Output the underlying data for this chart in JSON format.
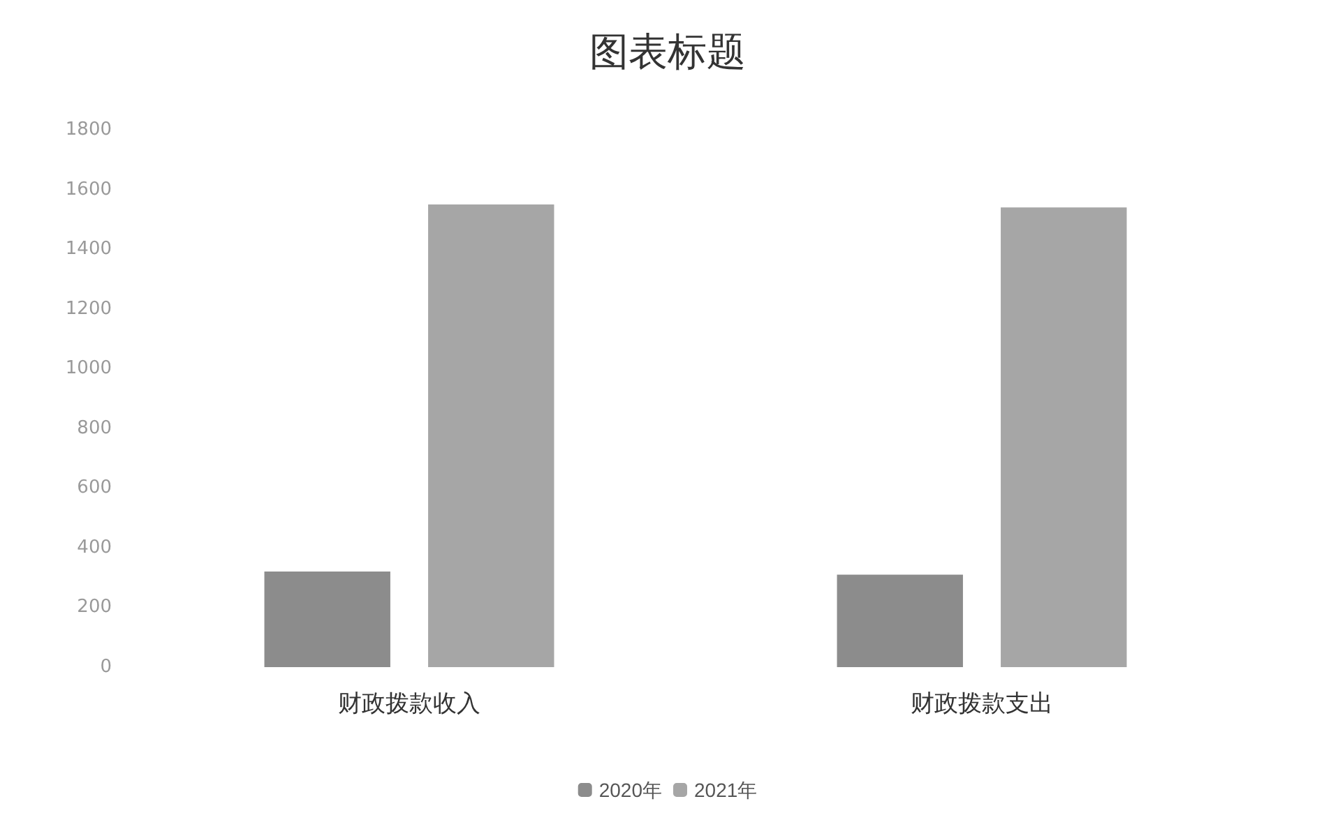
{
  "chart_data": {
    "type": "bar",
    "title": "图表标题",
    "categories": [
      "财政拨款收入",
      "财政拨款支出"
    ],
    "series": [
      {
        "name": "2020年",
        "color": "#8c8c8c",
        "values": [
          320,
          310
        ]
      },
      {
        "name": "2021年",
        "color": "#a6a6a6",
        "values": [
          1550,
          1540
        ]
      }
    ],
    "ylim": [
      0,
      1800
    ],
    "yticks": [
      0,
      200,
      400,
      600,
      800,
      1000,
      1200,
      1400,
      1600,
      1800
    ],
    "grid": false,
    "legend": "bottom"
  }
}
